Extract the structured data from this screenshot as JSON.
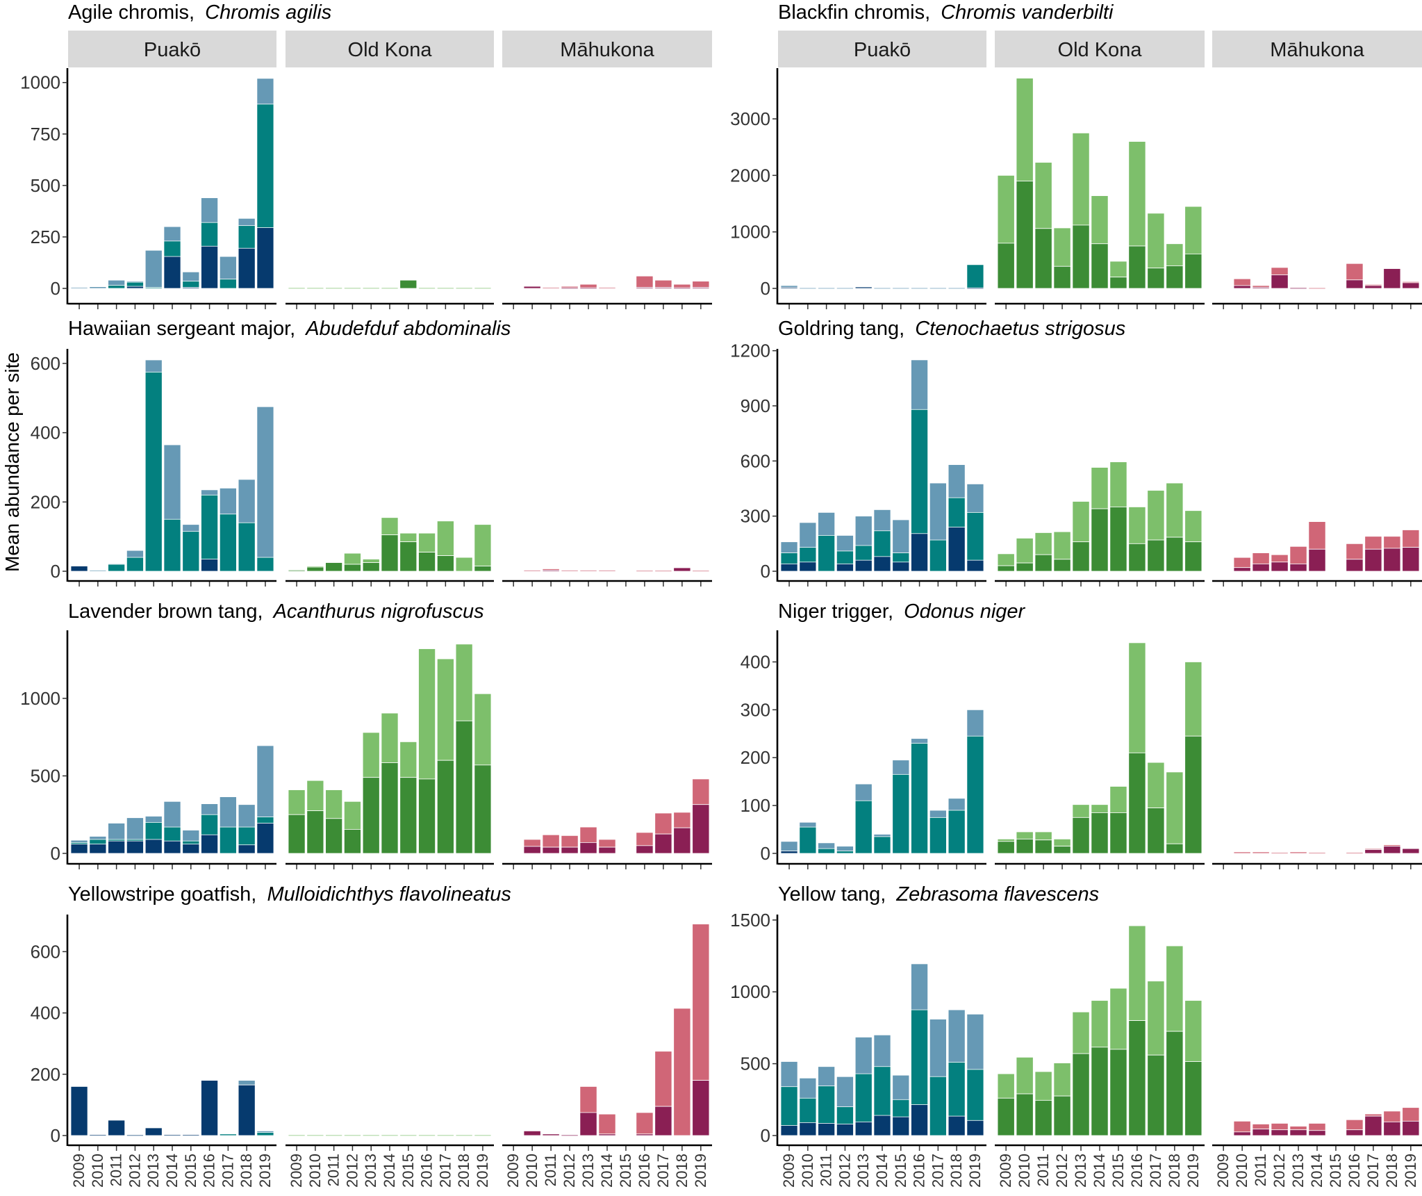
{
  "y_axis_label": "Mean abundance per site",
  "years": [
    "2009",
    "2010",
    "2011",
    "2012",
    "2013",
    "2014",
    "2015",
    "2016",
    "2017",
    "2018",
    "2019"
  ],
  "sites": [
    "Puakō",
    "Old Kona",
    "Māhukona"
  ],
  "colors": {
    "Puakō": [
      "#063a6e",
      "#03807f",
      "#6699b5"
    ],
    "Old Kona": [
      "#3c8c35",
      "#3c8c35",
      "#7dbf6b"
    ],
    "Māhukona": [
      "#8a1f54",
      "#8a1f54",
      "#d06677"
    ]
  },
  "chart_data": [
    {
      "type": "bar",
      "common_name": "Agile chromis, ",
      "scientific_name": "Chromis agilis",
      "ylim": [
        0,
        1070
      ],
      "yticks": [
        0,
        250,
        500,
        750,
        1000
      ],
      "layers_note": "cumulative stacked levels; Puakō [dark, mid, total], others [dark, total]; null = no survey",
      "bars": [
        [
          [
            0,
            0,
            5
          ],
          [
            0,
            0,
            8
          ],
          [
            0,
            15,
            40
          ],
          [
            10,
            30,
            35
          ],
          [
            0,
            5,
            185
          ],
          [
            155,
            230,
            300
          ],
          [
            5,
            35,
            80
          ],
          [
            205,
            320,
            440
          ],
          [
            0,
            45,
            155
          ],
          [
            195,
            305,
            340
          ],
          [
            295,
            895,
            1020
          ]
        ],
        [
          [
            0,
            3
          ],
          [
            0,
            3
          ],
          [
            0,
            3
          ],
          [
            0,
            3
          ],
          [
            0,
            3
          ],
          [
            0,
            3
          ],
          [
            40,
            40
          ],
          [
            0,
            3
          ],
          [
            0,
            3
          ],
          [
            0,
            3
          ],
          [
            0,
            3
          ]
        ],
        [
          null,
          [
            10,
            12
          ],
          [
            0,
            5
          ],
          [
            3,
            10
          ],
          [
            3,
            20
          ],
          [
            0,
            5
          ],
          null,
          [
            5,
            60
          ],
          [
            5,
            40
          ],
          [
            3,
            20
          ],
          [
            5,
            35
          ]
        ]
      ]
    },
    {
      "type": "bar",
      "common_name": "Blackfin chromis, ",
      "scientific_name": "Chromis vanderbilti",
      "ylim": [
        0,
        3898
      ],
      "yticks": [
        0,
        1000,
        2000,
        3000
      ],
      "bars": [
        [
          [
            20,
            20,
            50
          ],
          [
            0,
            0,
            10
          ],
          [
            0,
            0,
            10
          ],
          [
            0,
            0,
            10
          ],
          [
            25,
            25,
            25
          ],
          [
            0,
            0,
            10
          ],
          [
            0,
            0,
            10
          ],
          [
            0,
            0,
            10
          ],
          [
            0,
            0,
            10
          ],
          [
            0,
            0,
            10
          ],
          [
            10,
            420,
            420
          ]
        ],
        [
          [
            800,
            2000
          ],
          [
            1900,
            3720
          ],
          [
            1060,
            2230
          ],
          [
            390,
            1070
          ],
          [
            1120,
            2750
          ],
          [
            790,
            1640
          ],
          [
            200,
            480
          ],
          [
            750,
            2600
          ],
          [
            360,
            1330
          ],
          [
            400,
            790
          ],
          [
            610,
            1450
          ]
        ],
        [
          null,
          [
            50,
            170
          ],
          [
            20,
            50
          ],
          [
            240,
            370
          ],
          [
            10,
            20
          ],
          [
            0,
            10
          ],
          null,
          [
            150,
            440
          ],
          [
            50,
            70
          ],
          [
            350,
            350
          ],
          [
            100,
            120
          ]
        ]
      ]
    },
    {
      "type": "bar",
      "common_name": "Hawaiian sergeant major, ",
      "scientific_name": "Abudefduf abdominalis",
      "ylim": [
        0,
        642
      ],
      "yticks": [
        0,
        200,
        400,
        600
      ],
      "bars": [
        [
          [
            15,
            15,
            15
          ],
          [
            0,
            0,
            3
          ],
          [
            0,
            20,
            22
          ],
          [
            0,
            40,
            60
          ],
          [
            0,
            575,
            610
          ],
          [
            0,
            150,
            365
          ],
          [
            0,
            115,
            135
          ],
          [
            35,
            220,
            235
          ],
          [
            0,
            165,
            240
          ],
          [
            0,
            140,
            265
          ],
          [
            0,
            40,
            475
          ]
        ],
        [
          [
            3,
            5
          ],
          [
            12,
            15
          ],
          [
            25,
            25
          ],
          [
            20,
            52
          ],
          [
            25,
            35
          ],
          [
            105,
            155
          ],
          [
            85,
            110
          ],
          [
            55,
            110
          ],
          [
            45,
            145
          ],
          [
            0,
            40
          ],
          [
            15,
            135
          ]
        ],
        [
          null,
          [
            0,
            3
          ],
          [
            3,
            7
          ],
          [
            0,
            3
          ],
          [
            0,
            3
          ],
          [
            0,
            3
          ],
          null,
          [
            0,
            2
          ],
          [
            0,
            2
          ],
          [
            10,
            10
          ],
          [
            0,
            2
          ]
        ]
      ]
    },
    {
      "type": "bar",
      "common_name": "Goldring tang, ",
      "scientific_name": "Ctenochaetus strigosus",
      "ylim": [
        0,
        1210
      ],
      "yticks": [
        0,
        300,
        600,
        900,
        1200
      ],
      "bars": [
        [
          [
            40,
            100,
            160
          ],
          [
            50,
            130,
            265
          ],
          [
            0,
            195,
            320
          ],
          [
            40,
            110,
            195
          ],
          [
            60,
            140,
            300
          ],
          [
            80,
            220,
            335
          ],
          [
            50,
            100,
            280
          ],
          [
            205,
            880,
            1150
          ],
          [
            0,
            170,
            480
          ],
          [
            240,
            400,
            580
          ],
          [
            60,
            320,
            475
          ]
        ],
        [
          [
            30,
            95
          ],
          [
            45,
            180
          ],
          [
            90,
            210
          ],
          [
            65,
            215
          ],
          [
            160,
            380
          ],
          [
            340,
            565
          ],
          [
            350,
            595
          ],
          [
            150,
            350
          ],
          [
            170,
            440
          ],
          [
            185,
            480
          ],
          [
            160,
            330
          ]
        ],
        [
          null,
          [
            20,
            75
          ],
          [
            40,
            100
          ],
          [
            50,
            90
          ],
          [
            40,
            135
          ],
          [
            120,
            270
          ],
          null,
          [
            65,
            150
          ],
          [
            120,
            190
          ],
          [
            125,
            190
          ],
          [
            130,
            225
          ]
        ]
      ]
    },
    {
      "type": "bar",
      "common_name": "Lavender brown tang, ",
      "scientific_name": "Acanthurus nigrofuscus",
      "ylim": [
        0,
        1439
      ],
      "yticks": [
        0,
        500,
        1000
      ],
      "bars": [
        [
          [
            60,
            70,
            85
          ],
          [
            60,
            90,
            110
          ],
          [
            80,
            90,
            195
          ],
          [
            80,
            90,
            230
          ],
          [
            90,
            200,
            240
          ],
          [
            80,
            170,
            335
          ],
          [
            60,
            80,
            150
          ],
          [
            120,
            250,
            320
          ],
          [
            0,
            170,
            365
          ],
          [
            55,
            170,
            315
          ],
          [
            195,
            235,
            695
          ]
        ],
        [
          [
            250,
            410
          ],
          [
            275,
            470
          ],
          [
            225,
            410
          ],
          [
            155,
            335
          ],
          [
            490,
            780
          ],
          [
            585,
            905
          ],
          [
            490,
            720
          ],
          [
            480,
            1320
          ],
          [
            600,
            1255
          ],
          [
            855,
            1350
          ],
          [
            570,
            1030
          ]
        ],
        [
          null,
          [
            45,
            90
          ],
          [
            40,
            120
          ],
          [
            40,
            115
          ],
          [
            70,
            170
          ],
          [
            40,
            90
          ],
          null,
          [
            50,
            135
          ],
          [
            125,
            260
          ],
          [
            165,
            265
          ],
          [
            315,
            480
          ]
        ]
      ]
    },
    {
      "type": "bar",
      "common_name": "Niger trigger, ",
      "scientific_name": "Odonus niger",
      "ylim": [
        0,
        466
      ],
      "yticks": [
        0,
        100,
        200,
        300,
        400
      ],
      "bars": [
        [
          [
            5,
            5,
            25
          ],
          [
            0,
            55,
            65
          ],
          [
            0,
            10,
            22
          ],
          [
            0,
            5,
            15
          ],
          [
            0,
            110,
            145
          ],
          [
            0,
            35,
            40
          ],
          [
            0,
            165,
            195
          ],
          [
            0,
            230,
            240
          ],
          [
            0,
            75,
            90
          ],
          [
            0,
            90,
            115
          ],
          [
            0,
            245,
            300
          ]
        ],
        [
          [
            25,
            30
          ],
          [
            30,
            45
          ],
          [
            28,
            45
          ],
          [
            15,
            30
          ],
          [
            75,
            102
          ],
          [
            85,
            102
          ],
          [
            85,
            140
          ],
          [
            210,
            440
          ],
          [
            95,
            190
          ],
          [
            20,
            170
          ],
          [
            245,
            400
          ]
        ],
        [
          null,
          [
            0,
            3
          ],
          [
            0,
            3
          ],
          [
            0,
            2
          ],
          [
            0,
            3
          ],
          [
            0,
            2
          ],
          null,
          [
            0,
            2
          ],
          [
            8,
            10
          ],
          [
            15,
            18
          ],
          [
            10,
            10
          ]
        ]
      ]
    },
    {
      "type": "bar",
      "common_name": "Yellowstripe goatfish, ",
      "scientific_name": "Mulloidichthys flavolineatus",
      "ylim": [
        0,
        721
      ],
      "yticks": [
        0,
        200,
        400,
        600
      ],
      "bars": [
        [
          [
            160,
            160,
            160
          ],
          [
            3,
            3,
            3
          ],
          [
            50,
            50,
            50
          ],
          [
            2,
            2,
            2
          ],
          [
            25,
            25,
            25
          ],
          [
            3,
            3,
            3
          ],
          [
            3,
            3,
            3
          ],
          [
            180,
            180,
            180
          ],
          [
            0,
            5,
            5
          ],
          [
            165,
            165,
            180
          ],
          [
            0,
            10,
            15
          ]
        ],
        [
          [
            0,
            2
          ],
          [
            0,
            2
          ],
          [
            0,
            2
          ],
          [
            0,
            2
          ],
          [
            0,
            2
          ],
          [
            0,
            2
          ],
          [
            0,
            2
          ],
          [
            0,
            2
          ],
          [
            0,
            2
          ],
          [
            0,
            2
          ],
          [
            0,
            2
          ]
        ],
        [
          null,
          [
            15,
            15
          ],
          [
            5,
            5
          ],
          [
            2,
            2
          ],
          [
            75,
            160
          ],
          [
            5,
            70
          ],
          null,
          [
            5,
            75
          ],
          [
            95,
            275
          ],
          [
            0,
            415
          ],
          [
            180,
            690
          ]
        ]
      ]
    },
    {
      "type": "bar",
      "common_name": "Yellow tang, ",
      "scientific_name": "Zebrasoma flavescens",
      "ylim": [
        0,
        1538
      ],
      "yticks": [
        0,
        500,
        1000,
        1500
      ],
      "bars": [
        [
          [
            70,
            340,
            515
          ],
          [
            90,
            260,
            400
          ],
          [
            85,
            345,
            480
          ],
          [
            80,
            200,
            410
          ],
          [
            95,
            430,
            685
          ],
          [
            140,
            480,
            700
          ],
          [
            130,
            250,
            420
          ],
          [
            215,
            875,
            1195
          ],
          [
            0,
            410,
            810
          ],
          [
            135,
            510,
            875
          ],
          [
            105,
            460,
            845
          ]
        ],
        [
          [
            260,
            430
          ],
          [
            290,
            545
          ],
          [
            245,
            445
          ],
          [
            275,
            505
          ],
          [
            570,
            860
          ],
          [
            615,
            940
          ],
          [
            600,
            1025
          ],
          [
            800,
            1460
          ],
          [
            560,
            1075
          ],
          [
            725,
            1320
          ],
          [
            515,
            940
          ]
        ],
        [
          null,
          [
            25,
            100
          ],
          [
            45,
            80
          ],
          [
            40,
            85
          ],
          [
            40,
            65
          ],
          [
            35,
            85
          ],
          null,
          [
            40,
            110
          ],
          [
            135,
            150
          ],
          [
            95,
            170
          ],
          [
            100,
            195
          ]
        ]
      ]
    }
  ]
}
